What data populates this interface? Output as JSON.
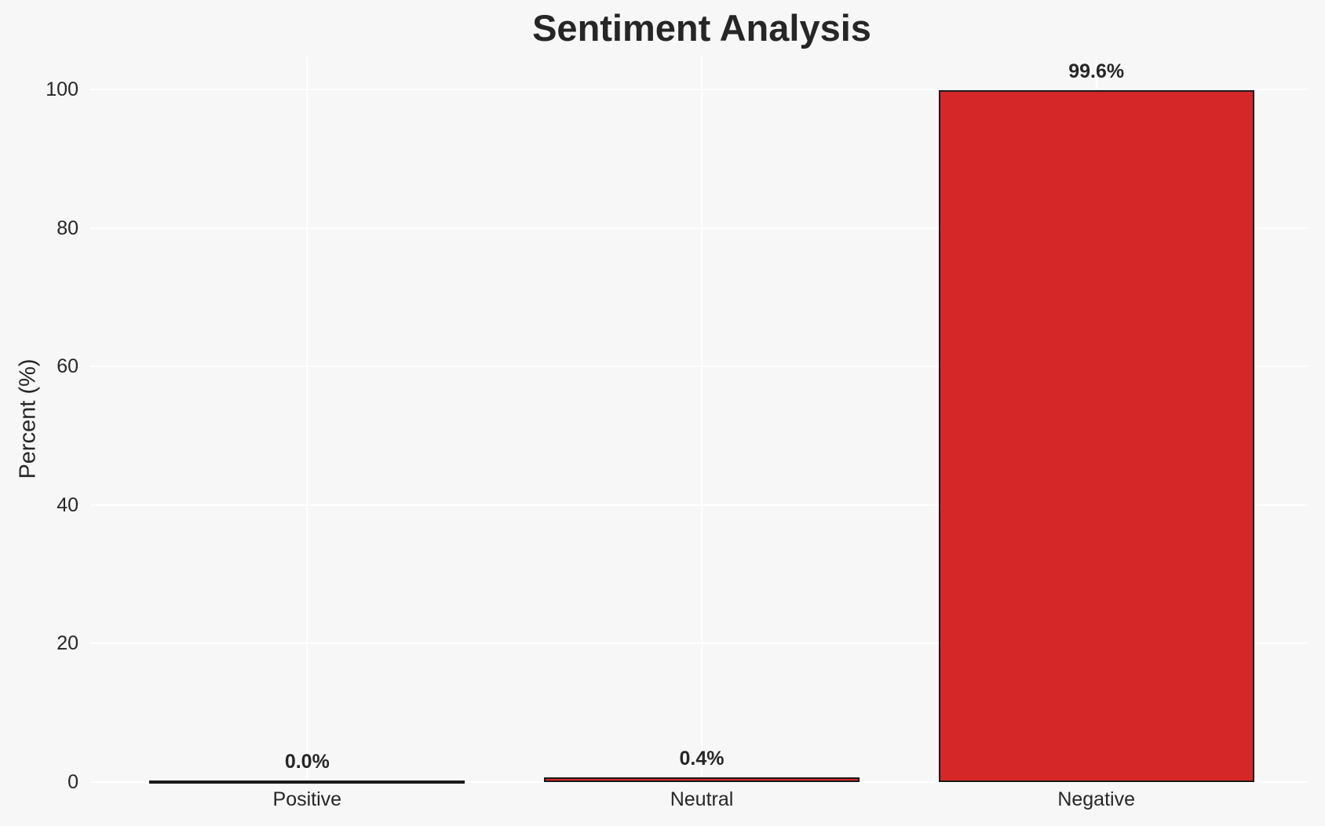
{
  "chart_data": {
    "type": "bar",
    "title": "Sentiment Analysis",
    "xlabel": "",
    "ylabel": "Percent (%)",
    "categories": [
      "Positive",
      "Neutral",
      "Negative"
    ],
    "values": [
      0.0,
      0.4,
      99.6
    ],
    "value_labels": [
      "0.0%",
      "0.4%",
      "99.6%"
    ],
    "yticks": [
      0,
      20,
      40,
      60,
      80,
      100
    ],
    "ylim": [
      0,
      104.5
    ],
    "grid": "on",
    "legend": "none",
    "colors": {
      "background": "#f7f7f7",
      "gridline": "#ffffff",
      "bar_fill": "#d62728",
      "bar_edge": "#1a1a1a",
      "text": "#262626"
    }
  }
}
